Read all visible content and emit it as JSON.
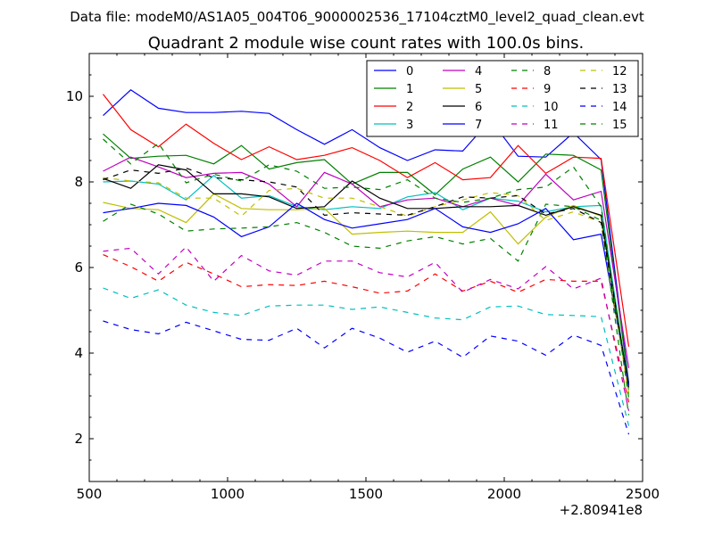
{
  "chart_data": {
    "type": "line",
    "suptitle": "Data file: modeM0/AS1A05_004T06_9000002536_17104cztM0_level2_quad_clean.evt",
    "title": "Quadrant 2 module wise count rates with 100.0s bins.",
    "xlabel": "",
    "ylabel": "",
    "x_offset_label": "+2.80941e8",
    "xlim": [
      500,
      2500
    ],
    "ylim": [
      1,
      11
    ],
    "xticks": [
      500,
      1000,
      1500,
      2000,
      2500
    ],
    "yticks": [
      2,
      4,
      6,
      8,
      10
    ],
    "grid": false,
    "legend": {
      "placement": "top-right",
      "columns": 4
    },
    "x": [
      550,
      650,
      750,
      850,
      950,
      1050,
      1150,
      1250,
      1350,
      1450,
      1550,
      1650,
      1750,
      1850,
      1950,
      2050,
      2150,
      2250,
      2350,
      2450
    ],
    "series": [
      {
        "name": "0",
        "color": "#0000ff",
        "dash": "solid",
        "values": [
          9.55,
          10.15,
          9.72,
          9.62,
          9.62,
          9.65,
          9.6,
          9.22,
          8.88,
          9.22,
          8.8,
          8.5,
          8.75,
          8.72,
          9.45,
          8.6,
          8.58,
          9.15,
          8.52,
          3.3
        ]
      },
      {
        "name": "1",
        "color": "#008000",
        "dash": "solid",
        "values": [
          9.12,
          8.55,
          8.6,
          8.62,
          8.42,
          8.85,
          8.3,
          8.45,
          8.52,
          7.95,
          8.22,
          8.22,
          7.7,
          8.3,
          8.58,
          8.0,
          8.65,
          8.62,
          8.28,
          3.25
        ]
      },
      {
        "name": "2",
        "color": "#ff0000",
        "dash": "solid",
        "values": [
          10.05,
          9.22,
          8.82,
          9.35,
          8.9,
          8.52,
          8.82,
          8.52,
          8.62,
          8.8,
          8.5,
          8.1,
          8.45,
          8.05,
          8.1,
          8.85,
          8.2,
          8.58,
          8.55,
          4.15
        ]
      },
      {
        "name": "3",
        "color": "#00bfbf",
        "dash": "solid",
        "values": [
          8.0,
          8.02,
          7.95,
          7.58,
          8.15,
          7.62,
          7.68,
          7.42,
          7.35,
          7.42,
          7.38,
          7.65,
          7.75,
          7.35,
          7.62,
          7.55,
          7.3,
          7.42,
          7.45,
          3.15
        ]
      },
      {
        "name": "4",
        "color": "#bf00bf",
        "dash": "solid",
        "values": [
          8.25,
          8.58,
          8.35,
          8.1,
          8.2,
          8.22,
          7.95,
          7.42,
          8.22,
          7.95,
          7.42,
          7.58,
          7.62,
          7.42,
          7.62,
          7.45,
          8.18,
          7.58,
          7.78,
          3.65
        ]
      },
      {
        "name": "5",
        "color": "#bfbf00",
        "dash": "solid",
        "values": [
          7.52,
          7.38,
          7.35,
          7.05,
          7.72,
          7.38,
          7.35,
          7.35,
          7.38,
          6.78,
          6.82,
          6.85,
          6.82,
          6.82,
          7.3,
          6.55,
          7.18,
          7.45,
          7.2,
          3.05
        ]
      },
      {
        "name": "6",
        "color": "#000000",
        "dash": "solid",
        "values": [
          8.08,
          7.85,
          8.4,
          8.28,
          7.72,
          7.72,
          7.65,
          7.38,
          7.42,
          8.02,
          7.62,
          7.38,
          7.38,
          7.42,
          7.42,
          7.45,
          7.22,
          7.42,
          7.22,
          3.2
        ]
      },
      {
        "name": "7",
        "color": "#0000ff",
        "dash": "solid",
        "values": [
          7.28,
          7.38,
          7.5,
          7.45,
          7.18,
          6.72,
          6.95,
          7.5,
          7.12,
          6.92,
          7.02,
          7.12,
          7.38,
          6.95,
          6.82,
          7.02,
          7.38,
          6.65,
          6.78,
          3.25
        ]
      },
      {
        "name": "8",
        "color": "#008000",
        "dash": "dashed",
        "values": [
          7.08,
          7.48,
          7.25,
          6.85,
          6.9,
          6.92,
          6.95,
          7.05,
          6.82,
          6.5,
          6.45,
          6.62,
          6.72,
          6.55,
          6.68,
          6.15,
          7.48,
          7.42,
          7.1,
          2.55
        ]
      },
      {
        "name": "9",
        "color": "#ff0000",
        "dash": "dashed",
        "values": [
          6.3,
          6.02,
          5.68,
          6.12,
          5.85,
          5.55,
          5.6,
          5.58,
          5.68,
          5.55,
          5.4,
          5.45,
          5.85,
          5.45,
          5.68,
          5.42,
          5.72,
          5.68,
          5.68,
          2.85
        ]
      },
      {
        "name": "10",
        "color": "#00bfbf",
        "dash": "dashed",
        "values": [
          5.52,
          5.28,
          5.48,
          5.12,
          4.95,
          4.88,
          5.1,
          5.12,
          5.12,
          5.02,
          5.08,
          4.95,
          4.82,
          4.78,
          5.08,
          5.1,
          4.9,
          4.88,
          4.85,
          2.3
        ]
      },
      {
        "name": "11",
        "color": "#bf00bf",
        "dash": "dashed",
        "values": [
          6.38,
          6.45,
          5.85,
          6.48,
          5.68,
          6.28,
          5.92,
          5.82,
          6.15,
          6.15,
          5.88,
          5.78,
          6.12,
          5.42,
          5.72,
          5.5,
          6.02,
          5.5,
          5.75,
          2.65
        ]
      },
      {
        "name": "12",
        "color": "#bfbf00",
        "dash": "dashed",
        "values": [
          8.1,
          8.02,
          7.98,
          7.62,
          7.62,
          7.2,
          7.8,
          7.85,
          7.62,
          7.62,
          7.42,
          7.2,
          7.42,
          7.58,
          7.75,
          7.68,
          7.1,
          7.3,
          7.05,
          3.05
        ]
      },
      {
        "name": "13",
        "color": "#000000",
        "dash": "dashed",
        "values": [
          8.05,
          8.28,
          8.2,
          8.32,
          8.1,
          8.05,
          8.0,
          7.88,
          7.22,
          7.28,
          7.25,
          7.22,
          7.42,
          7.65,
          7.62,
          7.68,
          7.25,
          7.38,
          7.05,
          3.2
        ]
      },
      {
        "name": "14",
        "color": "#0000ff",
        "dash": "dashed",
        "values": [
          4.75,
          4.55,
          4.45,
          4.72,
          4.52,
          4.32,
          4.3,
          4.58,
          4.12,
          4.58,
          4.35,
          4.02,
          4.28,
          3.9,
          4.4,
          4.28,
          3.95,
          4.42,
          4.18,
          2.1
        ]
      },
      {
        "name": "15",
        "color": "#008000",
        "dash": "dashed",
        "values": [
          9.0,
          8.42,
          8.9,
          7.98,
          8.18,
          8.02,
          8.4,
          8.25,
          7.85,
          7.88,
          7.82,
          8.05,
          7.62,
          7.52,
          7.62,
          7.82,
          7.88,
          8.35,
          7.42,
          2.95
        ]
      }
    ]
  }
}
